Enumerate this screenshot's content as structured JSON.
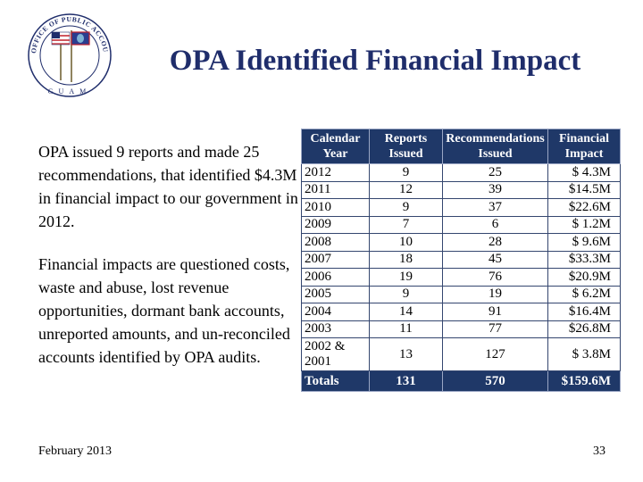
{
  "logo": {
    "ring_text": "OFFICE OF PUBLIC ACCOUNTABILITY",
    "bottom_text": "GUAM"
  },
  "title": "OPA Identified Financial Impact",
  "paragraphs": [
    "OPA issued 9 reports and made 25 recommendations, that identified $4.3M in financial impact to our government in 2012.",
    "Financial impacts are questioned costs, waste and abuse, lost revenue opportunities, dormant bank accounts, unreported amounts, and un-reconciled accounts identified by OPA audits."
  ],
  "table": {
    "headers": [
      "Calendar Year",
      "Reports Issued",
      "Recommendations Issued",
      "Financial Impact"
    ],
    "rows": [
      {
        "year": "2012",
        "reports": "9",
        "recs": "25",
        "impact": "$ 4.3M"
      },
      {
        "year": "2011",
        "reports": "12",
        "recs": "39",
        "impact": "$14.5M"
      },
      {
        "year": "2010",
        "reports": "9",
        "recs": "37",
        "impact": "$22.6M"
      },
      {
        "year": "2009",
        "reports": "7",
        "recs": "6",
        "impact": "$ 1.2M"
      },
      {
        "year": "2008",
        "reports": "10",
        "recs": "28",
        "impact": "$ 9.6M"
      },
      {
        "year": "2007",
        "reports": "18",
        "recs": "45",
        "impact": "$33.3M"
      },
      {
        "year": "2006",
        "reports": "19",
        "recs": "76",
        "impact": "$20.9M"
      },
      {
        "year": "2005",
        "reports": "9",
        "recs": "19",
        "impact": "$ 6.2M"
      },
      {
        "year": "2004",
        "reports": "14",
        "recs": "91",
        "impact": "$16.4M"
      },
      {
        "year": "2003",
        "reports": "11",
        "recs": "77",
        "impact": "$26.8M"
      },
      {
        "year": "2002 & 2001",
        "reports": "13",
        "recs": "127",
        "impact": "$ 3.8M"
      }
    ],
    "totals": {
      "label": "Totals",
      "reports": "131",
      "recs": "570",
      "impact": "$159.6M"
    }
  },
  "footer": {
    "date": "February 2013",
    "page": "33"
  },
  "colors": {
    "title": "#1f2d6b",
    "header_bg": "#1f3868",
    "header_text": "#ffffff"
  }
}
